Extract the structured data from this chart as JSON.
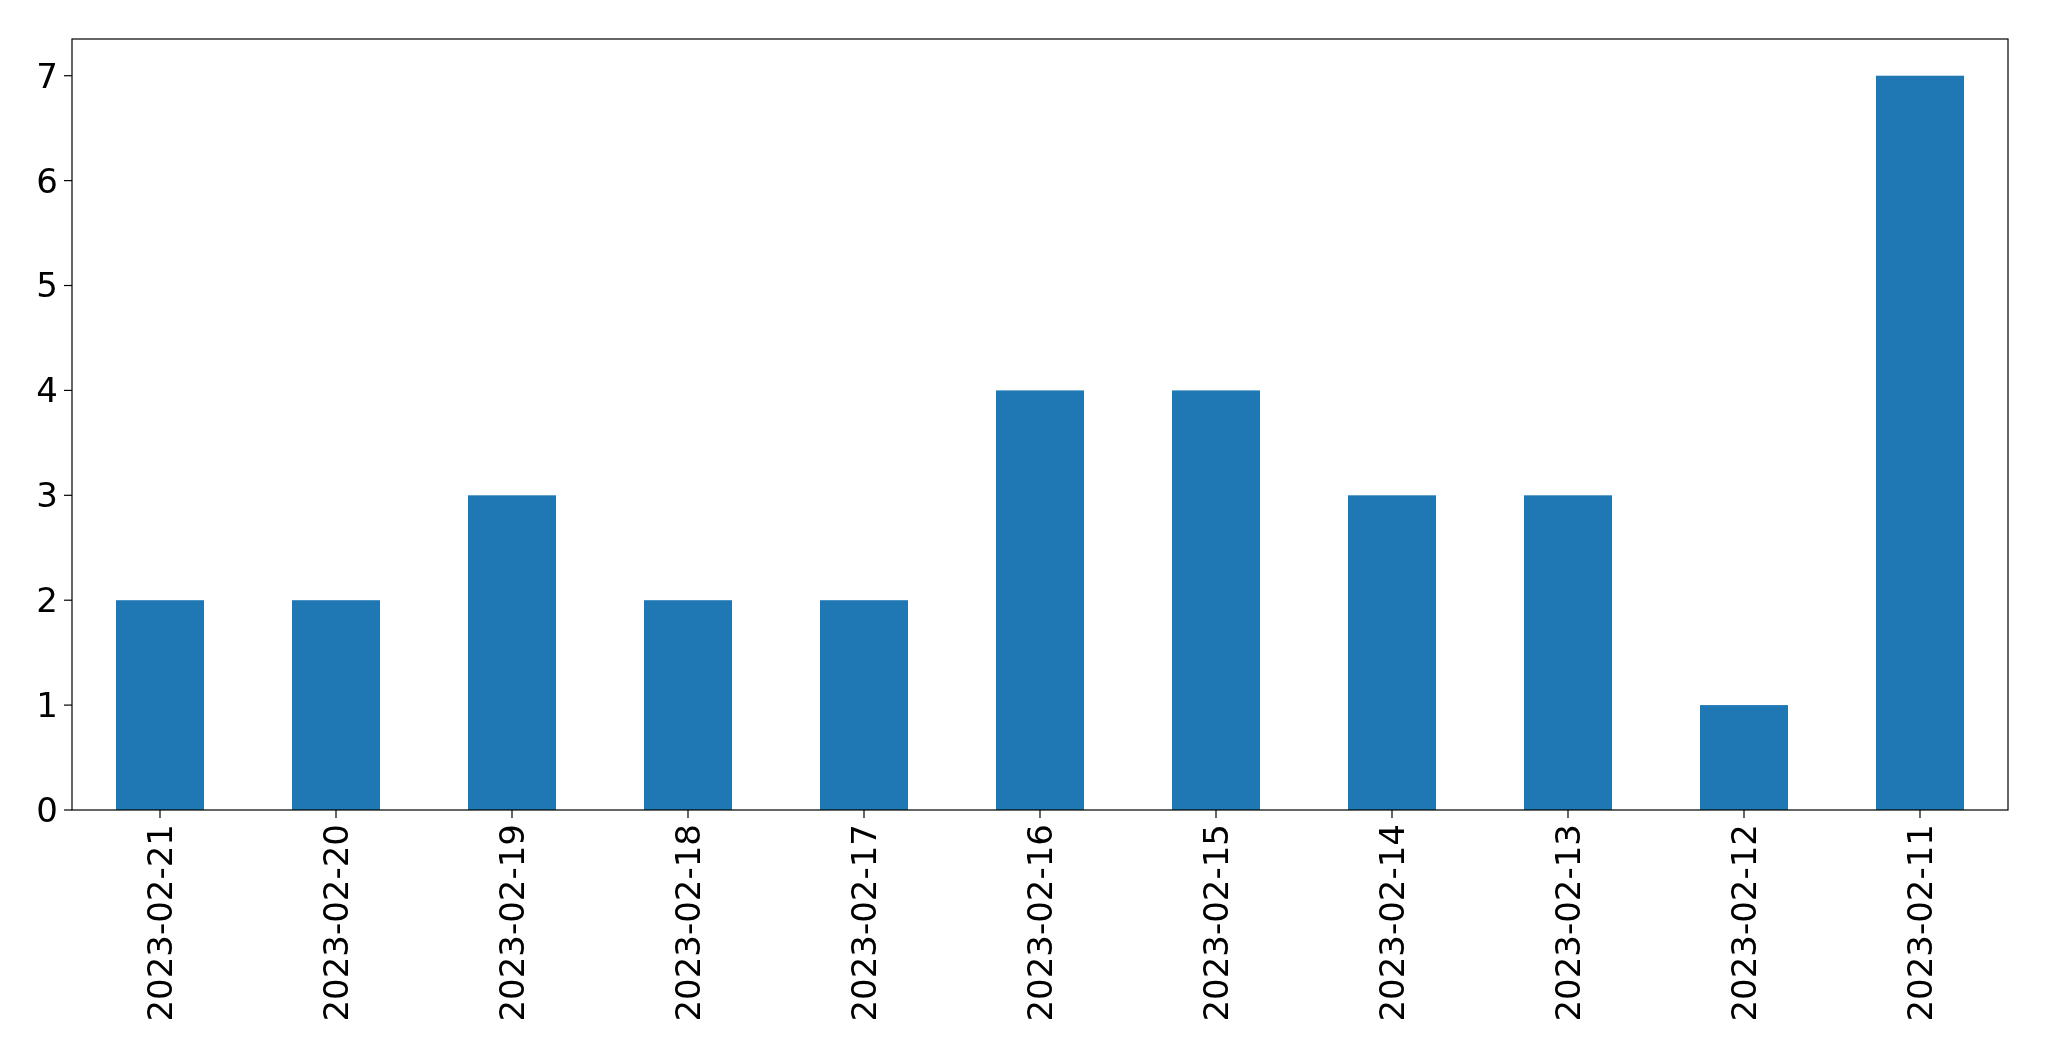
{
  "chart_data": {
    "type": "bar",
    "categories": [
      "2023-02-21",
      "2023-02-20",
      "2023-02-19",
      "2023-02-18",
      "2023-02-17",
      "2023-02-16",
      "2023-02-15",
      "2023-02-14",
      "2023-02-13",
      "2023-02-12",
      "2023-02-11"
    ],
    "values": [
      2,
      2,
      3,
      2,
      2,
      4,
      4,
      3,
      3,
      1,
      7
    ],
    "color": "#1f77b4",
    "ylim": [
      0,
      7.35
    ],
    "yticks": [
      0,
      1,
      2,
      3,
      4,
      5,
      6,
      7
    ],
    "grid": false
  }
}
